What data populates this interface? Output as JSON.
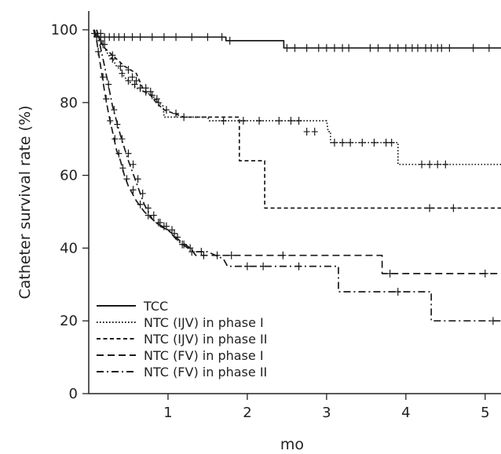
{
  "chart_data": {
    "type": "line",
    "title": "",
    "xlabel": "mo",
    "ylabel": "Catheter survival rate (%)",
    "xlim": [
      0,
      5.2
    ],
    "ylim": [
      0,
      100
    ],
    "x_ticks": [
      "1",
      "2",
      "3",
      "4",
      "5"
    ],
    "y_ticks": [
      "0",
      "20",
      "40",
      "60",
      "80",
      "100"
    ],
    "legend": {
      "position": "bottom-left"
    },
    "series": [
      {
        "name": "TCC",
        "line_style": "solid",
        "points": [
          [
            0.07,
            100
          ],
          [
            0.1,
            98
          ],
          [
            1.73,
            98
          ],
          [
            1.73,
            97
          ],
          [
            2.46,
            97
          ],
          [
            2.46,
            95
          ],
          [
            5.2,
            95
          ]
        ],
        "censor_marks": [
          [
            0.1,
            98
          ],
          [
            0.15,
            99
          ],
          [
            0.2,
            98
          ],
          [
            0.26,
            98
          ],
          [
            0.32,
            98
          ],
          [
            0.38,
            98
          ],
          [
            0.45,
            98
          ],
          [
            0.55,
            98
          ],
          [
            0.65,
            98
          ],
          [
            0.8,
            98
          ],
          [
            0.95,
            98
          ],
          [
            1.1,
            98
          ],
          [
            1.3,
            98
          ],
          [
            1.5,
            98
          ],
          [
            1.68,
            98
          ],
          [
            1.78,
            97
          ],
          [
            2.5,
            95
          ],
          [
            2.6,
            95
          ],
          [
            2.75,
            95
          ],
          [
            2.9,
            95
          ],
          [
            3.0,
            95
          ],
          [
            3.1,
            95
          ],
          [
            3.2,
            95
          ],
          [
            3.28,
            95
          ],
          [
            3.55,
            95
          ],
          [
            3.65,
            95
          ],
          [
            3.8,
            95
          ],
          [
            3.9,
            95
          ],
          [
            4.0,
            95
          ],
          [
            4.08,
            95
          ],
          [
            4.15,
            95
          ],
          [
            4.25,
            95
          ],
          [
            4.32,
            95
          ],
          [
            4.4,
            95
          ],
          [
            4.45,
            95
          ],
          [
            4.55,
            95
          ],
          [
            4.85,
            95
          ],
          [
            5.05,
            95
          ]
        ]
      },
      {
        "name": "NTC (IJV) in phase I",
        "line_style": "dotted",
        "points": [
          [
            0.1,
            100
          ],
          [
            0.15,
            97
          ],
          [
            0.2,
            95
          ],
          [
            0.25,
            93
          ],
          [
            0.3,
            92
          ],
          [
            0.35,
            90
          ],
          [
            0.4,
            89
          ],
          [
            0.45,
            87
          ],
          [
            0.5,
            86
          ],
          [
            0.55,
            85
          ],
          [
            0.6,
            84
          ],
          [
            0.7,
            83
          ],
          [
            0.8,
            82
          ],
          [
            0.88,
            80
          ],
          [
            0.94,
            79
          ],
          [
            0.95,
            76
          ],
          [
            1.5,
            76
          ],
          [
            1.52,
            75
          ],
          [
            3.0,
            75
          ],
          [
            3.02,
            72
          ],
          [
            3.05,
            72
          ],
          [
            3.05,
            69
          ],
          [
            3.9,
            69
          ],
          [
            3.9,
            63
          ],
          [
            5.2,
            63
          ]
        ],
        "censor_marks": [
          [
            0.18,
            96
          ],
          [
            0.3,
            92
          ],
          [
            0.42,
            88
          ],
          [
            0.5,
            86
          ],
          [
            0.58,
            85
          ],
          [
            0.65,
            84
          ],
          [
            0.72,
            83
          ],
          [
            0.8,
            82
          ],
          [
            0.86,
            81
          ],
          [
            1.7,
            75
          ],
          [
            1.95,
            75
          ],
          [
            2.15,
            75
          ],
          [
            2.4,
            75
          ],
          [
            2.55,
            75
          ],
          [
            2.65,
            75
          ],
          [
            2.75,
            72
          ],
          [
            2.85,
            72
          ],
          [
            3.1,
            69
          ],
          [
            3.2,
            69
          ],
          [
            3.3,
            69
          ],
          [
            3.45,
            69
          ],
          [
            3.6,
            69
          ],
          [
            3.75,
            69
          ],
          [
            3.82,
            69
          ],
          [
            4.2,
            63
          ],
          [
            4.3,
            63
          ],
          [
            4.4,
            63
          ],
          [
            4.5,
            63
          ]
        ]
      },
      {
        "name": "NTC (IJV) in phase II",
        "line_style": "short-dashed",
        "points": [
          [
            0.1,
            100
          ],
          [
            0.14,
            97
          ],
          [
            0.2,
            95
          ],
          [
            0.35,
            92
          ],
          [
            0.45,
            90
          ],
          [
            0.6,
            88
          ],
          [
            0.7,
            83
          ],
          [
            0.78,
            82
          ],
          [
            0.85,
            80
          ],
          [
            0.95,
            78
          ],
          [
            1.2,
            76
          ],
          [
            1.3,
            76
          ],
          [
            1.9,
            76
          ],
          [
            1.9,
            64
          ],
          [
            2.22,
            64
          ],
          [
            2.22,
            51
          ],
          [
            5.2,
            51
          ]
        ],
        "censor_marks": [
          [
            0.15,
            98
          ],
          [
            0.2,
            96
          ],
          [
            0.3,
            93
          ],
          [
            0.4,
            90
          ],
          [
            0.5,
            89
          ],
          [
            0.55,
            87
          ],
          [
            0.6,
            86
          ],
          [
            0.72,
            84
          ],
          [
            0.78,
            83
          ],
          [
            0.88,
            80
          ],
          [
            0.98,
            78
          ],
          [
            1.1,
            77
          ],
          [
            1.2,
            76
          ],
          [
            4.3,
            51
          ],
          [
            4.6,
            51
          ]
        ]
      },
      {
        "name": "NTC (FV) in phase I",
        "line_style": "long-dashed",
        "points": [
          [
            0.06,
            100
          ],
          [
            0.1,
            97
          ],
          [
            0.15,
            90
          ],
          [
            0.2,
            83
          ],
          [
            0.25,
            77
          ],
          [
            0.3,
            72
          ],
          [
            0.35,
            67
          ],
          [
            0.4,
            64
          ],
          [
            0.45,
            60
          ],
          [
            0.5,
            57
          ],
          [
            0.6,
            53
          ],
          [
            0.7,
            50
          ],
          [
            0.85,
            47
          ],
          [
            1.0,
            45
          ],
          [
            1.15,
            42
          ],
          [
            1.28,
            40
          ],
          [
            1.35,
            38
          ],
          [
            1.5,
            38
          ],
          [
            3.7,
            38
          ],
          [
            3.7,
            33
          ],
          [
            5.2,
            33
          ]
        ],
        "censor_marks": [
          [
            0.07,
            99
          ],
          [
            0.12,
            94
          ],
          [
            0.18,
            87
          ],
          [
            0.22,
            81
          ],
          [
            0.27,
            75
          ],
          [
            0.33,
            70
          ],
          [
            0.38,
            66
          ],
          [
            0.43,
            62
          ],
          [
            0.48,
            59
          ],
          [
            0.56,
            56
          ],
          [
            0.65,
            52
          ],
          [
            0.75,
            49
          ],
          [
            0.88,
            47
          ],
          [
            0.95,
            46
          ],
          [
            1.05,
            45
          ],
          [
            1.12,
            43
          ],
          [
            1.2,
            41
          ],
          [
            1.3,
            39
          ],
          [
            1.45,
            38
          ],
          [
            1.62,
            38
          ],
          [
            1.8,
            38
          ],
          [
            2.45,
            38
          ],
          [
            3.8,
            33
          ],
          [
            5.0,
            33
          ]
        ]
      },
      {
        "name": "NTC (FV) in phase II",
        "line_style": "dash-dot",
        "points": [
          [
            0.1,
            100
          ],
          [
            0.2,
            90
          ],
          [
            0.3,
            79
          ],
          [
            0.4,
            71
          ],
          [
            0.5,
            64
          ],
          [
            0.6,
            58
          ],
          [
            0.7,
            52
          ],
          [
            0.8,
            48
          ],
          [
            0.9,
            46
          ],
          [
            1.0,
            45
          ],
          [
            1.12,
            42
          ],
          [
            1.25,
            40
          ],
          [
            1.35,
            39
          ],
          [
            1.5,
            39
          ],
          [
            1.7,
            37
          ],
          [
            1.75,
            35
          ],
          [
            3.15,
            35
          ],
          [
            3.15,
            28
          ],
          [
            4.32,
            28
          ],
          [
            4.32,
            20
          ],
          [
            5.2,
            20
          ]
        ],
        "censor_marks": [
          [
            0.15,
            97
          ],
          [
            0.25,
            85
          ],
          [
            0.32,
            78
          ],
          [
            0.36,
            74
          ],
          [
            0.42,
            70
          ],
          [
            0.5,
            66
          ],
          [
            0.56,
            63
          ],
          [
            0.62,
            59
          ],
          [
            0.68,
            55
          ],
          [
            0.75,
            51
          ],
          [
            0.82,
            49
          ],
          [
            0.9,
            47
          ],
          [
            0.98,
            46
          ],
          [
            1.08,
            44
          ],
          [
            1.18,
            41
          ],
          [
            1.28,
            40
          ],
          [
            1.42,
            39
          ],
          [
            2.0,
            35
          ],
          [
            2.2,
            35
          ],
          [
            2.65,
            35
          ],
          [
            3.9,
            28
          ],
          [
            5.1,
            20
          ]
        ]
      }
    ]
  }
}
